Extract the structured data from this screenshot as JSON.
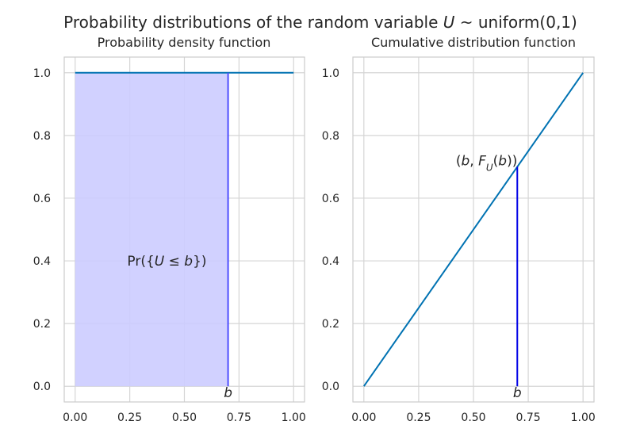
{
  "figure": {
    "title_prefix": "Probability distributions of the random variable ",
    "title_var": "U",
    "title_suffix": " ~ uniform(0,1)"
  },
  "chart_data": [
    {
      "type": "line",
      "title": "Probability density function",
      "x": [
        0.0,
        1.0
      ],
      "series": [
        {
          "values": [
            1.0,
            1.0
          ],
          "color": "#0072b2"
        }
      ],
      "shaded_region": {
        "x_from": 0.0,
        "x_to": 0.7,
        "y_from": 0.0,
        "y_to": 1.0,
        "color": "#ccccff"
      },
      "marker_line": {
        "x": 0.7,
        "y_from": 0.0,
        "y_to": 1.0,
        "color": "#4d4dff"
      },
      "annotations": [
        {
          "text": "Pr({U ≤ b})",
          "x": 0.42,
          "y": 0.4
        },
        {
          "text": "b",
          "x": 0.7,
          "y": -0.02
        }
      ],
      "xlim": [
        -0.05,
        1.05
      ],
      "ylim": [
        -0.05,
        1.05
      ],
      "xticks": [
        0.0,
        0.25,
        0.5,
        0.75,
        1.0
      ],
      "xtick_labels": [
        "0.00",
        "0.25",
        "0.50",
        "0.75",
        "1.00"
      ],
      "yticks": [
        0.0,
        0.2,
        0.4,
        0.6,
        0.8,
        1.0
      ],
      "ytick_labels": [
        "0.0",
        "0.2",
        "0.4",
        "0.6",
        "0.8",
        "1.0"
      ],
      "grid": true
    },
    {
      "type": "line",
      "title": "Cumulative distribution function",
      "x": [
        0.0,
        1.0
      ],
      "series": [
        {
          "values": [
            0.0,
            1.0
          ],
          "color": "#0072b2"
        }
      ],
      "marker_line": {
        "x": 0.7,
        "y_from": 0.0,
        "y_to": 0.7,
        "color": "#0000e6"
      },
      "annotations": [
        {
          "text": "(b, F_U(b))",
          "x": 0.56,
          "y": 0.72
        },
        {
          "text": "b",
          "x": 0.7,
          "y": -0.02
        }
      ],
      "xlim": [
        -0.05,
        1.05
      ],
      "ylim": [
        -0.05,
        1.05
      ],
      "xticks": [
        0.0,
        0.25,
        0.5,
        0.75,
        1.0
      ],
      "xtick_labels": [
        "0.00",
        "0.25",
        "0.50",
        "0.75",
        "1.00"
      ],
      "yticks": [
        0.0,
        0.2,
        0.4,
        0.6,
        0.8,
        1.0
      ],
      "ytick_labels": [
        "0.0",
        "0.2",
        "0.4",
        "0.6",
        "0.8",
        "1.0"
      ],
      "grid": true
    }
  ],
  "colors": {
    "grid": "#d5d5d5",
    "spine": "#cccccc",
    "text": "#262626"
  }
}
